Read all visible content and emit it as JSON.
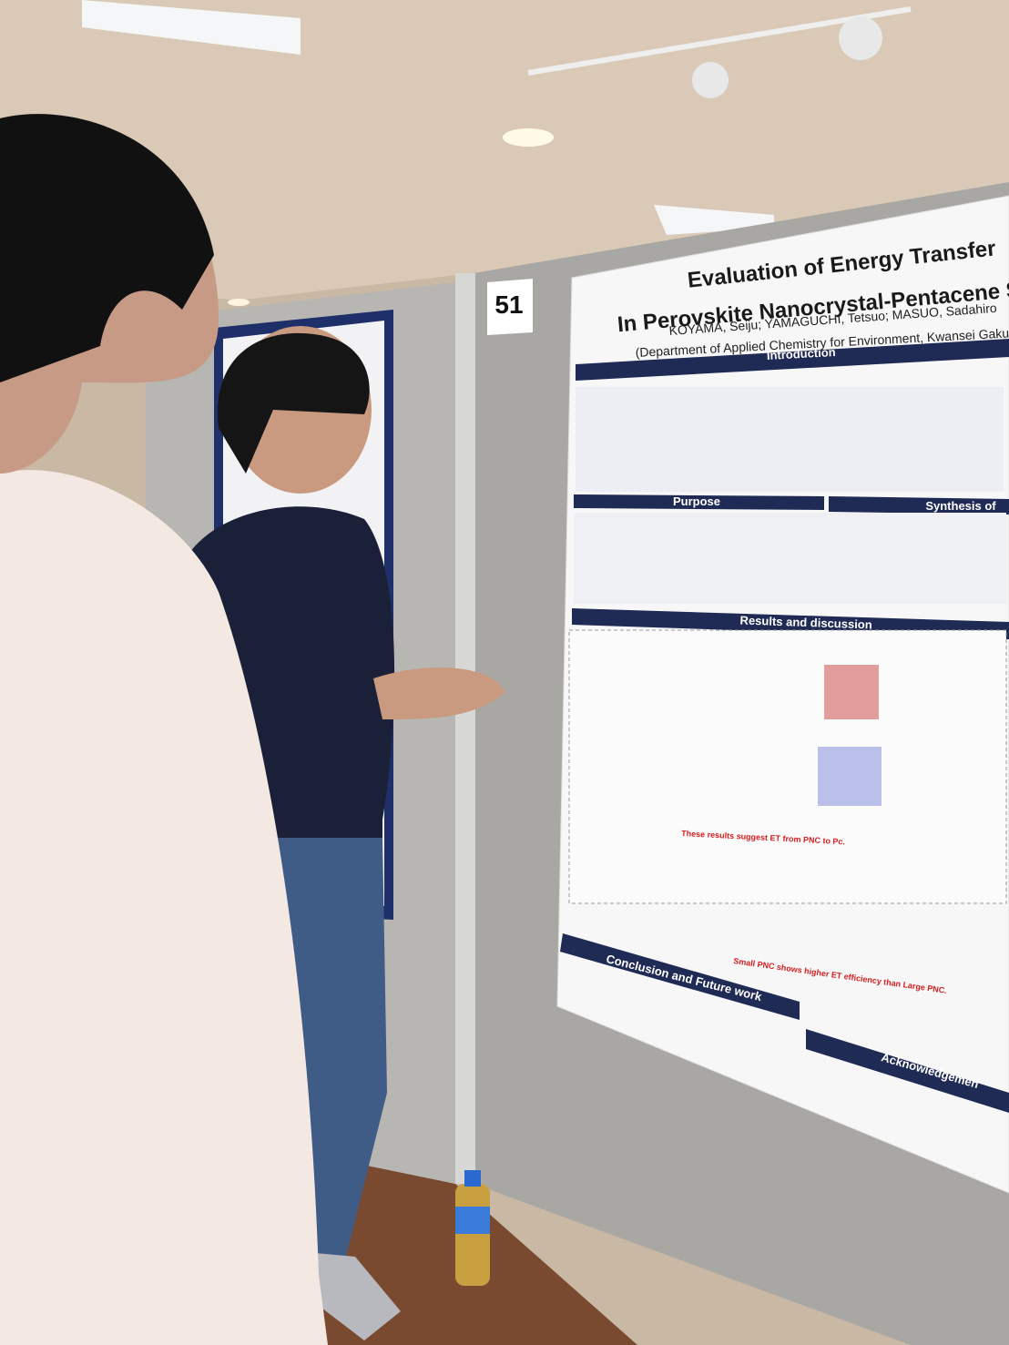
{
  "board_number": "51",
  "poster": {
    "title": [
      "Evaluation of Energy Transfer",
      "In Perovskite Nanocrystal-Pentacene S"
    ],
    "authors": "KOYAMA, Seiju; YAMAGUCHI, Tetsuo; MASUO, Sadahiro",
    "affiliation": "(Department of Applied Chemistry for Environment, Kwansei Gakuin U",
    "sections": [
      "Introduction",
      "Purpose",
      "Synthesis of",
      "Results and discussion",
      "Conclusion and Future work",
      "Acknowledgemen"
    ],
    "statements": [
      "These results suggest ET from PNC to Pc.",
      "Small PNC shows higher ET efficiency than Large PNC."
    ]
  }
}
